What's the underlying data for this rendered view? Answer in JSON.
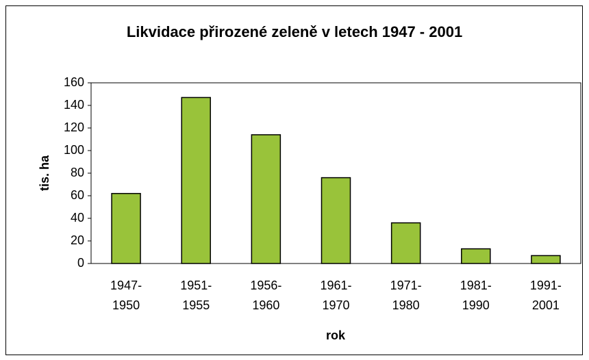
{
  "chart_data": {
    "type": "bar",
    "title": "Likvidace přirozené zeleně v letech 1947 - 2001",
    "categories": [
      "1947-\n1950",
      "1951-\n1955",
      "1956-\n1960",
      "1961-\n1970",
      "1971-\n1980",
      "1981-\n1990",
      "1991-\n2001"
    ],
    "values": [
      62,
      147,
      114,
      76,
      36,
      13,
      7
    ],
    "color": "#99c33a",
    "ylim": [
      0,
      160
    ],
    "yticks": [
      0,
      20,
      40,
      60,
      80,
      100,
      120,
      140,
      160
    ],
    "y_label": "tis. ha",
    "x_label": "rok",
    "grid": false
  }
}
